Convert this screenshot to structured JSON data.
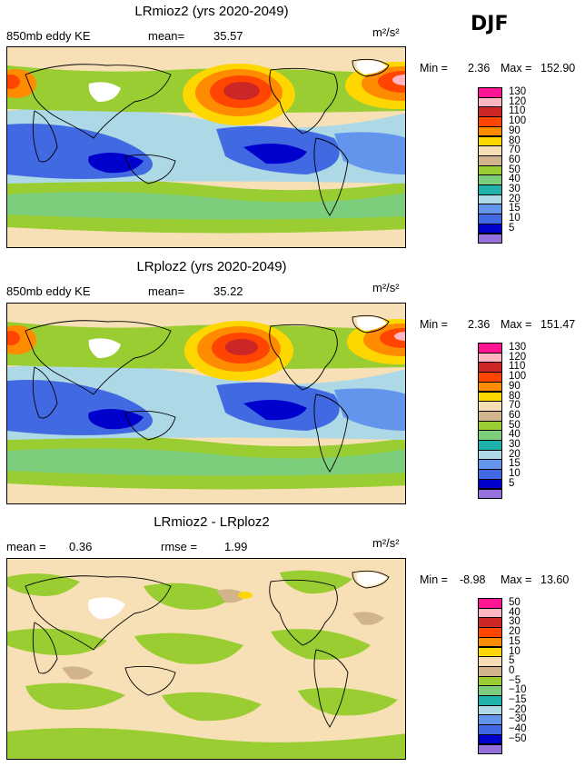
{
  "season": "DJF",
  "panels": [
    {
      "title": "LRmioz2 (yrs 2020-2049)",
      "left_label": "850mb eddy KE",
      "stat_label": "mean=",
      "stat_value": "35.57",
      "unit": "m²/s²",
      "min_label": "Min =",
      "min_value": "2.36",
      "max_label": "Max =",
      "max_value": "152.90",
      "scale": [
        {
          "label": "130",
          "color": "#ff1493"
        },
        {
          "label": "120",
          "color": "#ffb6c1"
        },
        {
          "label": "110",
          "color": "#cd2626"
        },
        {
          "label": "100",
          "color": "#ff4500"
        },
        {
          "label": "90",
          "color": "#ff8c00"
        },
        {
          "label": "80",
          "color": "#ffd700"
        },
        {
          "label": "70",
          "color": "#f5deb3"
        },
        {
          "label": "60",
          "color": "#d2b48c"
        },
        {
          "label": "50",
          "color": "#9acd32"
        },
        {
          "label": "40",
          "color": "#7ccd7c"
        },
        {
          "label": "30",
          "color": "#20b2aa"
        },
        {
          "label": "20",
          "color": "#add8e6"
        },
        {
          "label": "15",
          "color": "#6495ed"
        },
        {
          "label": "10",
          "color": "#4169e1"
        },
        {
          "label": "5",
          "color": "#0000cd"
        },
        {
          "label": "",
          "color": "#9370db"
        }
      ]
    },
    {
      "title": "LRploz2 (yrs 2020-2049)",
      "left_label": "850mb eddy KE",
      "stat_label": "mean=",
      "stat_value": "35.22",
      "unit": "m²/s²",
      "min_label": "Min =",
      "min_value": "2.36",
      "max_label": "Max =",
      "max_value": "151.47",
      "scale": [
        {
          "label": "130",
          "color": "#ff1493"
        },
        {
          "label": "120",
          "color": "#ffb6c1"
        },
        {
          "label": "110",
          "color": "#cd2626"
        },
        {
          "label": "100",
          "color": "#ff4500"
        },
        {
          "label": "90",
          "color": "#ff8c00"
        },
        {
          "label": "80",
          "color": "#ffd700"
        },
        {
          "label": "70",
          "color": "#f5deb3"
        },
        {
          "label": "60",
          "color": "#d2b48c"
        },
        {
          "label": "50",
          "color": "#9acd32"
        },
        {
          "label": "40",
          "color": "#7ccd7c"
        },
        {
          "label": "30",
          "color": "#20b2aa"
        },
        {
          "label": "20",
          "color": "#add8e6"
        },
        {
          "label": "15",
          "color": "#6495ed"
        },
        {
          "label": "10",
          "color": "#4169e1"
        },
        {
          "label": "5",
          "color": "#0000cd"
        },
        {
          "label": "",
          "color": "#9370db"
        }
      ]
    },
    {
      "title": "LRmioz2 - LRploz2",
      "left_label": "mean =",
      "left_value": "0.36",
      "stat_label": "rmse =",
      "stat_value": "1.99",
      "unit": "m²/s²",
      "min_label": "Min =",
      "min_value": "-8.98",
      "max_label": "Max =",
      "max_value": "13.60",
      "scale": [
        {
          "label": "50",
          "color": "#ff1493"
        },
        {
          "label": "40",
          "color": "#ffb6c1"
        },
        {
          "label": "30",
          "color": "#cd2626"
        },
        {
          "label": "20",
          "color": "#ff4500"
        },
        {
          "label": "15",
          "color": "#ff8c00"
        },
        {
          "label": "10",
          "color": "#ffd700"
        },
        {
          "label": "5",
          "color": "#f5deb3"
        },
        {
          "label": "0",
          "color": "#d2b48c"
        },
        {
          "label": "−5",
          "color": "#9acd32"
        },
        {
          "label": "−10",
          "color": "#7ccd7c"
        },
        {
          "label": "−15",
          "color": "#20b2aa"
        },
        {
          "label": "−20",
          "color": "#add8e6"
        },
        {
          "label": "−30",
          "color": "#6495ed"
        },
        {
          "label": "−40",
          "color": "#4169e1"
        },
        {
          "label": "−50",
          "color": "#0000cd"
        },
        {
          "label": "",
          "color": "#9370db"
        }
      ]
    }
  ]
}
